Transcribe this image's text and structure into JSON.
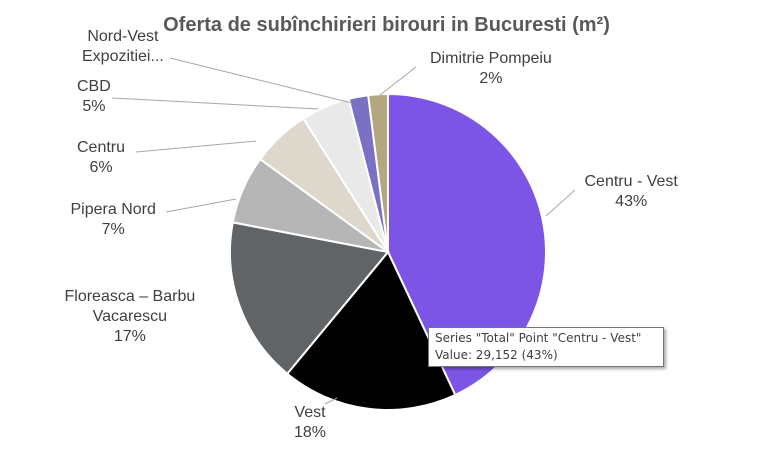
{
  "chart_data": {
    "type": "pie",
    "title": "Oferta de subînchirieri birouri in Bucuresti (m²)",
    "series_name": "Total",
    "categories": [
      "Centru - Vest",
      "Vest",
      "Floreasca – Barbu Vacarescu",
      "Pipera Nord",
      "Centru",
      "CBD",
      "Nord-Vest Expozitiei...",
      "Dimitrie Pompeiu"
    ],
    "values": [
      43,
      18,
      17,
      7,
      6,
      5,
      2,
      2
    ],
    "percent_labels": [
      "43%",
      "18%",
      "17%",
      "7%",
      "6%",
      "5%",
      "",
      "2%"
    ],
    "label_lines": [
      [
        "Centru - Vest"
      ],
      [
        "Vest"
      ],
      [
        "Floreasca – Barbu",
        "Vacarescu"
      ],
      [
        "Pipera Nord"
      ],
      [
        "Centru"
      ],
      [
        "CBD"
      ],
      [
        "Nord-Vest",
        "Expozitiei..."
      ],
      [
        "Dimitrie Pompeiu"
      ]
    ],
    "colors": [
      "#7d55e6",
      "#000000",
      "#616467",
      "#b6b6b6",
      "#ddd7cc",
      "#e9e9ea",
      "#7a70c4",
      "#b2a780"
    ],
    "start_angle_deg": 0,
    "direction": "clockwise",
    "legend": "none",
    "data_labels": "outside-with-leader-lines"
  },
  "tooltip": {
    "line1": "Series \"Total\" Point \"Centru - Vest\"",
    "line2": "Value: 29,152 (43%)"
  }
}
